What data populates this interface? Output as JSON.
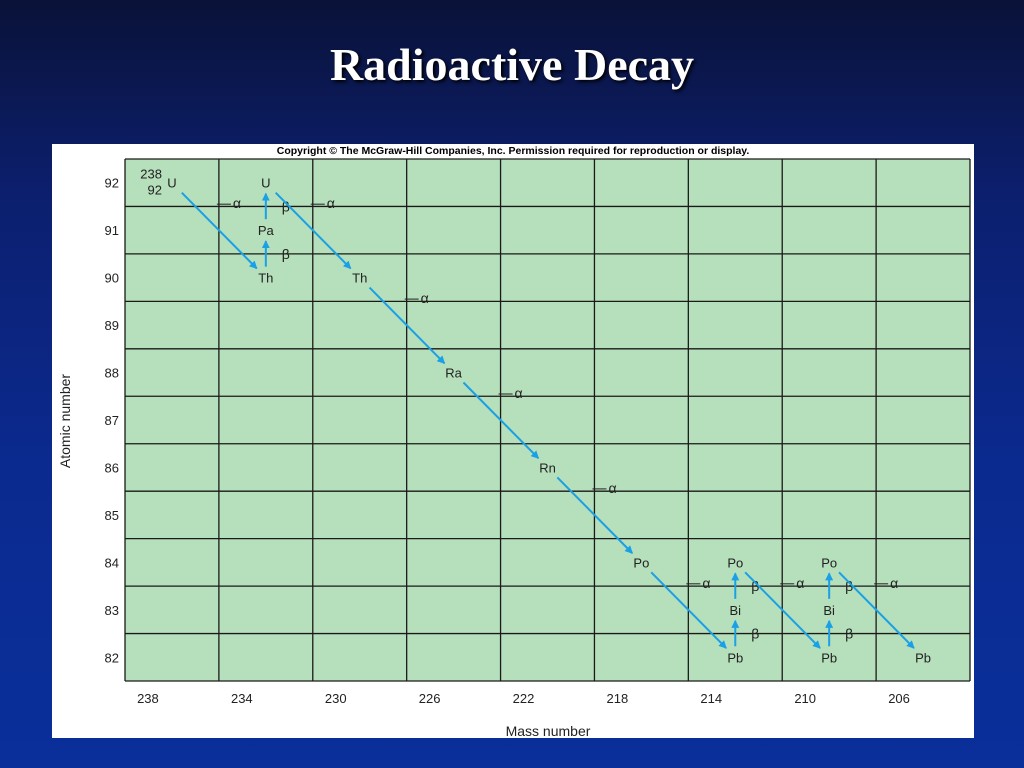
{
  "slide": {
    "title": "Radioactive Decay"
  },
  "figure": {
    "copyright": "Copyright © The McGraw-Hill Companies, Inc. Permission required for reproduction or display.",
    "colors": {
      "plot_bg": "#b6dfbb",
      "grid": "#1a1a1a",
      "arrow": "#1aa0e6",
      "text": "#222222"
    }
  },
  "chart_data": {
    "type": "scatter",
    "xlabel": "Mass number",
    "ylabel": "Atomic number",
    "x_ticks": [
      "238",
      "234",
      "230",
      "226",
      "222",
      "218",
      "214",
      "210",
      "206"
    ],
    "y_ticks": [
      "92",
      "91",
      "90",
      "89",
      "88",
      "87",
      "86",
      "85",
      "84",
      "83",
      "82"
    ],
    "nuclides": [
      {
        "symbol": "U",
        "mass": 238,
        "atomic": 92,
        "prefix_mass": "238",
        "prefix_atomic": "92"
      },
      {
        "symbol": "Th",
        "mass": 234,
        "atomic": 90
      },
      {
        "symbol": "Pa",
        "mass": 234,
        "atomic": 91
      },
      {
        "symbol": "U",
        "mass": 234,
        "atomic": 92
      },
      {
        "symbol": "Th",
        "mass": 230,
        "atomic": 90
      },
      {
        "symbol": "Ra",
        "mass": 226,
        "atomic": 88
      },
      {
        "symbol": "Rn",
        "mass": 222,
        "atomic": 86
      },
      {
        "symbol": "Po",
        "mass": 218,
        "atomic": 84
      },
      {
        "symbol": "Pb",
        "mass": 214,
        "atomic": 82
      },
      {
        "symbol": "Bi",
        "mass": 214,
        "atomic": 83
      },
      {
        "symbol": "Po",
        "mass": 214,
        "atomic": 84
      },
      {
        "symbol": "Pb",
        "mass": 210,
        "atomic": 82
      },
      {
        "symbol": "Bi",
        "mass": 210,
        "atomic": 83
      },
      {
        "symbol": "Po",
        "mass": 210,
        "atomic": 84
      },
      {
        "symbol": "Pb",
        "mass": 206,
        "atomic": 82
      }
    ],
    "decays": [
      {
        "type": "alpha",
        "label": "α",
        "from": [
          238,
          92
        ],
        "to": [
          234,
          90
        ]
      },
      {
        "type": "beta",
        "label": "β",
        "from": [
          234,
          90
        ],
        "to": [
          234,
          91
        ]
      },
      {
        "type": "beta",
        "label": "β",
        "from": [
          234,
          91
        ],
        "to": [
          234,
          92
        ]
      },
      {
        "type": "alpha",
        "label": "α",
        "from": [
          234,
          92
        ],
        "to": [
          230,
          90
        ]
      },
      {
        "type": "alpha",
        "label": "α",
        "from": [
          230,
          90
        ],
        "to": [
          226,
          88
        ]
      },
      {
        "type": "alpha",
        "label": "α",
        "from": [
          226,
          88
        ],
        "to": [
          222,
          86
        ]
      },
      {
        "type": "alpha",
        "label": "α",
        "from": [
          222,
          86
        ],
        "to": [
          218,
          84
        ]
      },
      {
        "type": "alpha",
        "label": "α",
        "from": [
          218,
          84
        ],
        "to": [
          214,
          82
        ]
      },
      {
        "type": "beta",
        "label": "β",
        "from": [
          214,
          82
        ],
        "to": [
          214,
          83
        ]
      },
      {
        "type": "beta",
        "label": "β",
        "from": [
          214,
          83
        ],
        "to": [
          214,
          84
        ]
      },
      {
        "type": "alpha",
        "label": "α",
        "from": [
          214,
          84
        ],
        "to": [
          210,
          82
        ]
      },
      {
        "type": "beta",
        "label": "β",
        "from": [
          210,
          82
        ],
        "to": [
          210,
          83
        ]
      },
      {
        "type": "beta",
        "label": "β",
        "from": [
          210,
          83
        ],
        "to": [
          210,
          84
        ]
      },
      {
        "type": "alpha",
        "label": "α",
        "from": [
          210,
          84
        ],
        "to": [
          206,
          82
        ]
      }
    ]
  }
}
